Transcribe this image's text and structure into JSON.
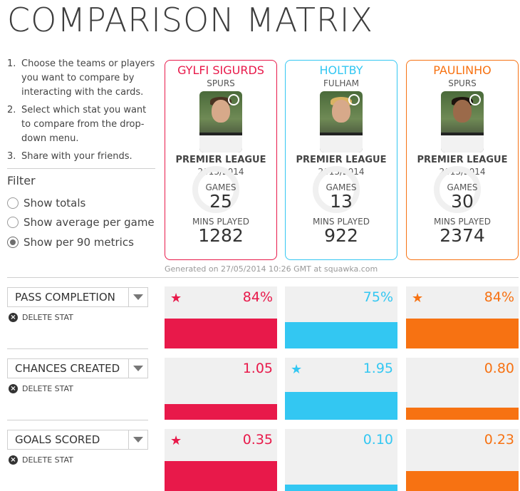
{
  "title": "COMPARISON MATRIX",
  "instructions": [
    {
      "num": "1.",
      "text": "Choose the teams or players you want to compare by interacting with the cards."
    },
    {
      "num": "2.",
      "text": "Select which stat you want to compare from the drop-down menu."
    },
    {
      "num": "3.",
      "text": "Share with your friends."
    }
  ],
  "filter": {
    "heading": "Filter",
    "options": [
      "Show totals",
      "Show average per game",
      "Show per 90 metrics"
    ],
    "selected": "Show per 90 metrics"
  },
  "colors": {
    "player1": "#e8194a",
    "player2": "#33c7f2",
    "player3": "#f77212"
  },
  "players": [
    {
      "name": "GYLFI SIGURDS",
      "club": "SPURS",
      "league": "PREMIER LEAGUE",
      "season": "2013/2014",
      "games_label": "GAMES",
      "games": "25",
      "mins_label": "MINS PLAYED",
      "mins": "1282",
      "badge_icon": "squawka-logo-icon"
    },
    {
      "name": "HOLTBY",
      "club": "FULHAM",
      "league": "PREMIER LEAGUE",
      "season": "2013/2014",
      "games_label": "GAMES",
      "games": "13",
      "mins_label": "MINS PLAYED",
      "mins": "922",
      "badge_icon": "squawka-logo-icon"
    },
    {
      "name": "PAULINHO",
      "club": "SPURS",
      "league": "PREMIER LEAGUE",
      "season": "2013/2014",
      "games_label": "GAMES",
      "games": "30",
      "mins_label": "MINS PLAYED",
      "mins": "2374",
      "badge_icon": "squawka-logo-icon"
    }
  ],
  "generated": "Generated on 27/05/2014 10:26 GMT at squawka.com",
  "delete_label": "DELETE STAT",
  "stats": [
    {
      "name": "PASS COMPLETION",
      "values": [
        "84%",
        "75%",
        "84%"
      ],
      "fill": [
        0.48,
        0.43,
        0.48
      ],
      "star": [
        true,
        false,
        true
      ]
    },
    {
      "name": "CHANCES CREATED",
      "values": [
        "1.05",
        "1.95",
        "0.80"
      ],
      "fill": [
        0.25,
        0.45,
        0.19
      ],
      "star": [
        false,
        true,
        false
      ]
    },
    {
      "name": "GOALS SCORED",
      "values": [
        "0.35",
        "0.10",
        "0.23"
      ],
      "fill": [
        0.48,
        0.1,
        0.32
      ],
      "star": [
        true,
        false,
        false
      ]
    }
  ]
}
